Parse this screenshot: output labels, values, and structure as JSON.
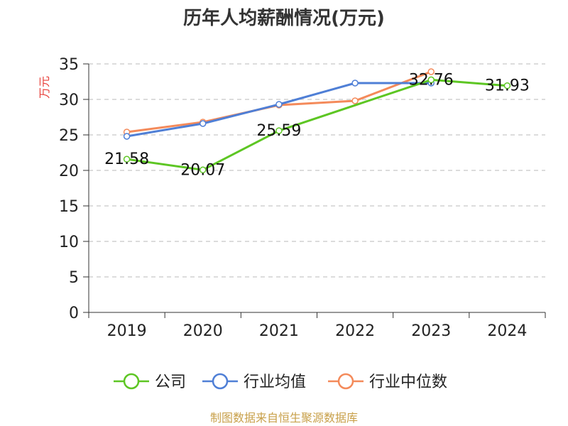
{
  "chart_data": {
    "type": "line",
    "title": "历年人均薪酬情况(万元)",
    "ylabel": "万元",
    "xlabel": "",
    "categories": [
      "2019",
      "2020",
      "2021",
      "2022",
      "2023",
      "2024"
    ],
    "ylim": [
      0,
      35
    ],
    "yticks": [
      0,
      5,
      10,
      15,
      20,
      25,
      30,
      35
    ],
    "grid": true,
    "legend_position": "bottom",
    "series": [
      {
        "name": "公司",
        "color": "#5dc623",
        "values": [
          21.58,
          20.07,
          25.59,
          null,
          32.76,
          31.93
        ],
        "labels": [
          "21.58",
          "20.07",
          "25.59",
          "",
          "32.76",
          "31.93"
        ]
      },
      {
        "name": "行业均值",
        "color": "#4f7fd6",
        "values": [
          24.8,
          26.6,
          29.3,
          32.3,
          32.3,
          null
        ]
      },
      {
        "name": "行业中位数",
        "color": "#f48a5a",
        "values": [
          25.4,
          26.8,
          29.2,
          29.8,
          33.9,
          null
        ]
      }
    ]
  },
  "footer": {
    "source": "制图数据来自恒生聚源数据库"
  }
}
